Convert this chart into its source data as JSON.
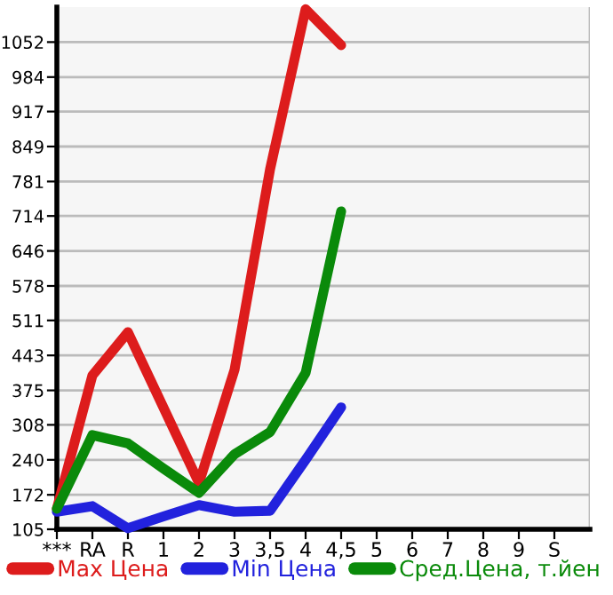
{
  "chart_data": {
    "type": "line",
    "categories": [
      "***",
      "RA",
      "R",
      "1",
      "2",
      "3",
      "3,5",
      "4",
      "4,5",
      "5",
      "6",
      "7",
      "8",
      "9",
      "S"
    ],
    "series": [
      {
        "name": "Max Цена",
        "color": "#dd1c1c",
        "values": [
          145,
          404,
          488,
          null,
          195,
          415,
          805,
          1116,
          1046,
          null,
          null,
          null,
          null,
          null,
          null
        ]
      },
      {
        "name": "Min Цена",
        "color": "#2222dd",
        "values": [
          139,
          150,
          107,
          130,
          152,
          139,
          141,
          240,
          342,
          null,
          null,
          null,
          null,
          null,
          null
        ]
      },
      {
        "name": "Сред.Цена, т.йен",
        "color": "#0a8a0a",
        "values": [
          145,
          288,
          272,
          223,
          176,
          251,
          294,
          409,
          723,
          null,
          null,
          null,
          null,
          null,
          null
        ]
      }
    ],
    "ylim": [
      105,
      1120
    ],
    "yticks": [
      105,
      172,
      240,
      308,
      375,
      443,
      511,
      578,
      646,
      714,
      781,
      849,
      917,
      984,
      1052
    ],
    "grid": true,
    "legend": "bottom",
    "marker": "none",
    "line_style": "solid"
  }
}
